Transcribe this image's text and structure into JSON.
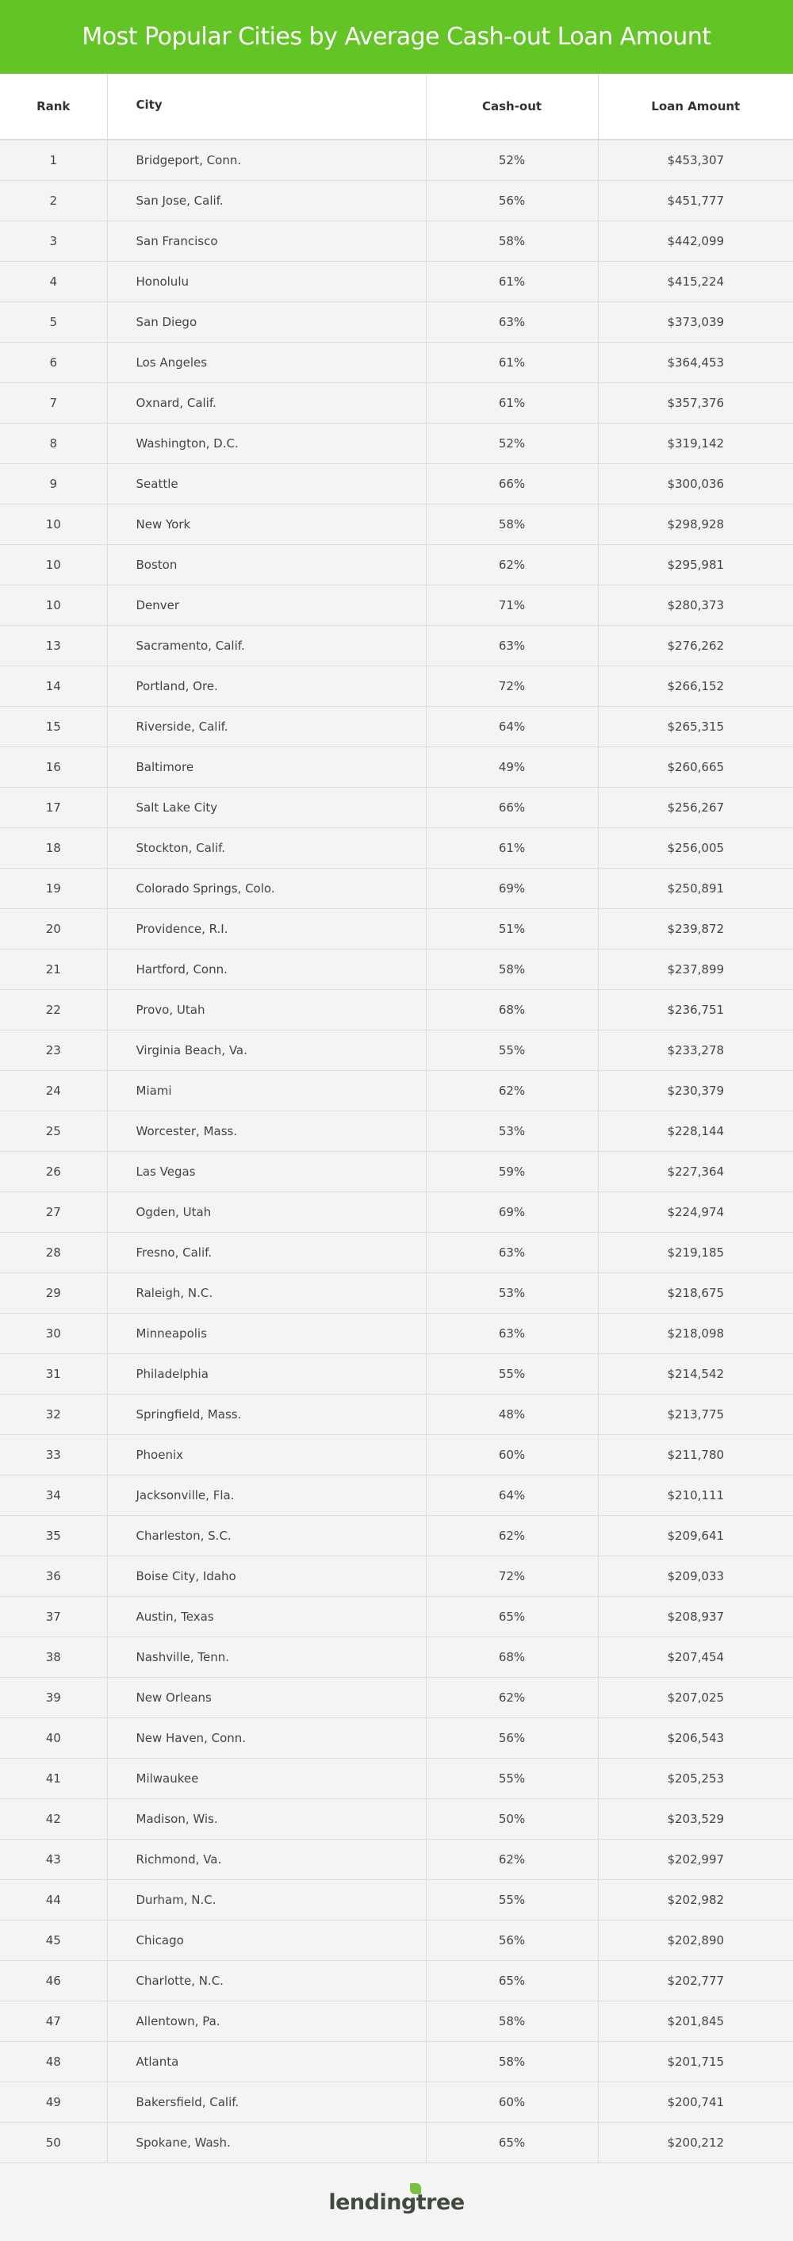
{
  "title": "Most Popular Cities by Average Cash-out Loan Amount",
  "columns": [
    "Rank",
    "City",
    "Cash-out",
    "Loan Amount"
  ],
  "rows": [
    [
      "1",
      "Bridgeport, Conn.",
      "52%",
      "$453,307"
    ],
    [
      "2",
      "San Jose, Calif.",
      "56%",
      "$451,777"
    ],
    [
      "3",
      "San Francisco",
      "58%",
      "$442,099"
    ],
    [
      "4",
      "Honolulu",
      "61%",
      "$415,224"
    ],
    [
      "5",
      "San Diego",
      "63%",
      "$373,039"
    ],
    [
      "6",
      "Los Angeles",
      "61%",
      "$364,453"
    ],
    [
      "7",
      "Oxnard, Calif.",
      "61%",
      "$357,376"
    ],
    [
      "8",
      "Washington, D.C.",
      "52%",
      "$319,142"
    ],
    [
      "9",
      "Seattle",
      "66%",
      "$300,036"
    ],
    [
      "10",
      "New York",
      "58%",
      "$298,928"
    ],
    [
      "10",
      "Boston",
      "62%",
      "$295,981"
    ],
    [
      "10",
      "Denver",
      "71%",
      "$280,373"
    ],
    [
      "13",
      "Sacramento, Calif.",
      "63%",
      "$276,262"
    ],
    [
      "14",
      "Portland, Ore.",
      "72%",
      "$266,152"
    ],
    [
      "15",
      "Riverside, Calif.",
      "64%",
      "$265,315"
    ],
    [
      "16",
      "Baltimore",
      "49%",
      "$260,665"
    ],
    [
      "17",
      "Salt Lake City",
      "66%",
      "$256,267"
    ],
    [
      "18",
      "Stockton, Calif.",
      "61%",
      "$256,005"
    ],
    [
      "19",
      "Colorado Springs, Colo.",
      "69%",
      "$250,891"
    ],
    [
      "20",
      "Providence, R.I.",
      "51%",
      "$239,872"
    ],
    [
      "21",
      "Hartford, Conn.",
      "58%",
      "$237,899"
    ],
    [
      "22",
      "Provo, Utah",
      "68%",
      "$236,751"
    ],
    [
      "23",
      "Virginia Beach, Va.",
      "55%",
      "$233,278"
    ],
    [
      "24",
      "Miami",
      "62%",
      "$230,379"
    ],
    [
      "25",
      "Worcester, Mass.",
      "53%",
      "$228,144"
    ],
    [
      "26",
      "Las Vegas",
      "59%",
      "$227,364"
    ],
    [
      "27",
      "Ogden, Utah",
      "69%",
      "$224,974"
    ],
    [
      "28",
      "Fresno, Calif.",
      "63%",
      "$219,185"
    ],
    [
      "29",
      "Raleigh, N.C.",
      "53%",
      "$218,675"
    ],
    [
      "30",
      "Minneapolis",
      "63%",
      "$218,098"
    ],
    [
      "31",
      "Philadelphia",
      "55%",
      "$214,542"
    ],
    [
      "32",
      "Springfield, Mass.",
      "48%",
      "$213,775"
    ],
    [
      "33",
      "Phoenix",
      "60%",
      "$211,780"
    ],
    [
      "34",
      "Jacksonville, Fla.",
      "64%",
      "$210,111"
    ],
    [
      "35",
      "Charleston, S.C.",
      "62%",
      "$209,641"
    ],
    [
      "36",
      "Boise City, Idaho",
      "72%",
      "$209,033"
    ],
    [
      "37",
      "Austin, Texas",
      "65%",
      "$208,937"
    ],
    [
      "38",
      "Nashville, Tenn.",
      "68%",
      "$207,454"
    ],
    [
      "39",
      "New Orleans",
      "62%",
      "$207,025"
    ],
    [
      "40",
      "New Haven, Conn.",
      "56%",
      "$206,543"
    ],
    [
      "41",
      "Milwaukee",
      "55%",
      "$205,253"
    ],
    [
      "42",
      "Madison, Wis.",
      "50%",
      "$203,529"
    ],
    [
      "43",
      "Richmond, Va.",
      "62%",
      "$202,997"
    ],
    [
      "44",
      "Durham, N.C.",
      "55%",
      "$202,982"
    ],
    [
      "45",
      "Chicago",
      "56%",
      "$202,890"
    ],
    [
      "46",
      "Charlotte, N.C.",
      "65%",
      "$202,777"
    ],
    [
      "47",
      "Allentown, Pa.",
      "58%",
      "$201,845"
    ],
    [
      "48",
      "Atlanta",
      "58%",
      "$201,715"
    ],
    [
      "49",
      "Bakersfield, Calif.",
      "60%",
      "$200,741"
    ],
    [
      "50",
      "Spokane, Wash.",
      "65%",
      "$200,212"
    ]
  ],
  "footer": {
    "logo_text": "lendingtree"
  },
  "colors": {
    "header": "#63c425",
    "logo_leaf": "#7ac143"
  }
}
